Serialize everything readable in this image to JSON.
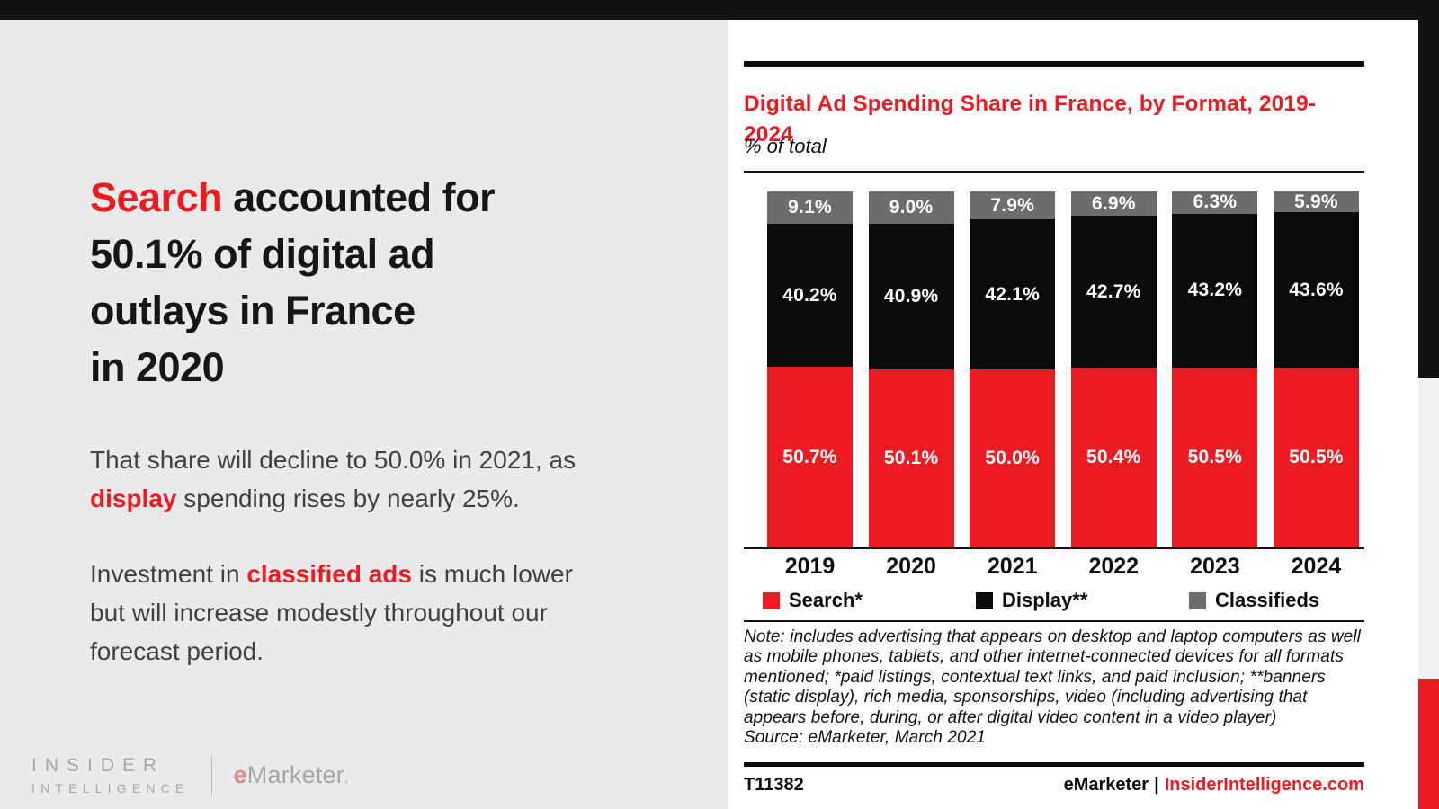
{
  "accent_red": "#ec1b23",
  "left_panel": {
    "headline_lines": [
      [
        {
          "text": "Search",
          "em": true
        },
        {
          "text": " accounted for",
          "em": false
        }
      ],
      [
        {
          "text": "50.1% of digital ad",
          "em": false
        }
      ],
      [
        {
          "text": "outlays in France",
          "em": false
        }
      ],
      [
        {
          "text": "in 2020",
          "em": false
        }
      ]
    ],
    "paragraph1_lines": [
      [
        {
          "text": "That share will decline to 50.0% in 2021, as",
          "em": false
        }
      ],
      [
        {
          "text": "display",
          "em": true
        },
        {
          "text": " spending rises by nearly 25%.",
          "em": false
        }
      ]
    ],
    "paragraph2_lines": [
      [
        {
          "text": "Investment in ",
          "em": false
        },
        {
          "text": "classified ads",
          "em": true
        },
        {
          "text": " is much lower",
          "em": false
        }
      ],
      [
        {
          "text": "but will increase modestly throughout our",
          "em": false
        }
      ],
      [
        {
          "text": "forecast period.",
          "em": false
        }
      ]
    ],
    "logo": {
      "line1": "INSIDER",
      "line2": "INTELLIGENCE",
      "emarketer_e": "e",
      "emarketer_rest": "Marketer",
      "emarketer_dot": "."
    }
  },
  "chart_panel": {
    "note": "Note: includes advertising that appears on desktop and laptop computers as well as mobile phones, tablets, and other internet-connected devices for all formats mentioned; *paid listings, contextual text links, and paid inclusion; **banners (static display), rich media, sponsorships, video (including advertising that appears before, during, or after digital video content in a video player)",
    "source": "Source: eMarketer, March 2021",
    "footer_id": "T11382",
    "footer_brand": "eMarketer",
    "footer_separator": "|",
    "footer_site": "InsiderIntelligence.com"
  },
  "chart_data": {
    "type": "bar",
    "stacked": true,
    "title": "Digital Ad Spending Share in France, by Format, 2019-2024",
    "subtitle": "% of total",
    "categories": [
      "2019",
      "2020",
      "2021",
      "2022",
      "2023",
      "2024"
    ],
    "series": [
      {
        "name": "Search*",
        "color": "#ec1b23",
        "values": [
          50.7,
          50.1,
          50.0,
          50.4,
          50.5,
          50.5
        ]
      },
      {
        "name": "Display**",
        "color": "#0b0b0b",
        "values": [
          40.2,
          40.9,
          42.1,
          42.7,
          43.2,
          43.6
        ]
      },
      {
        "name": "Classifieds",
        "color": "#6d6d6d",
        "values": [
          9.1,
          9.0,
          7.9,
          6.9,
          6.3,
          5.9
        ]
      }
    ],
    "value_suffix": "%",
    "ylim": [
      0,
      100
    ],
    "ylabel": "",
    "xlabel": "",
    "grid": false,
    "legend_position": "bottom",
    "value_labels": "inside-white-bold"
  }
}
